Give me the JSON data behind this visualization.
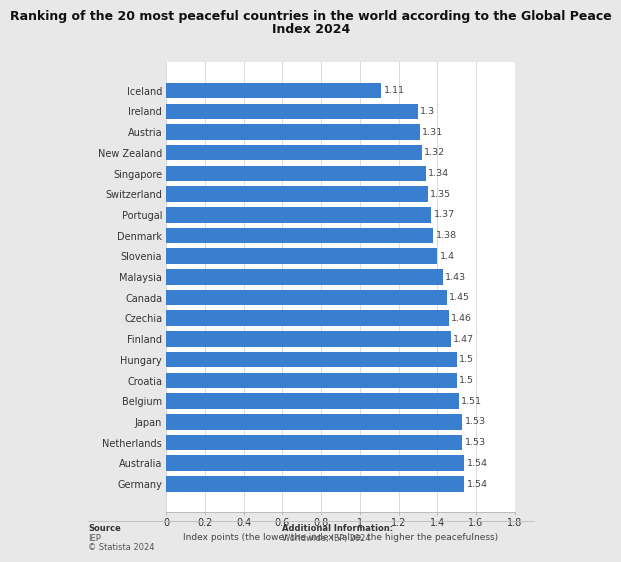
{
  "title_line1": "Ranking of the 20 most peaceful countries in the world according to the Global Peace",
  "title_line2": "Index 2024",
  "countries": [
    "Iceland",
    "Ireland",
    "Austria",
    "New Zealand",
    "Singapore",
    "Switzerland",
    "Portugal",
    "Denmark",
    "Slovenia",
    "Malaysia",
    "Canada",
    "Czechia",
    "Finland",
    "Hungary",
    "Croatia",
    "Belgium",
    "Japan",
    "Netherlands",
    "Australia",
    "Germany"
  ],
  "values": [
    1.11,
    1.3,
    1.31,
    1.32,
    1.34,
    1.35,
    1.37,
    1.38,
    1.4,
    1.43,
    1.45,
    1.46,
    1.47,
    1.5,
    1.5,
    1.51,
    1.53,
    1.53,
    1.54,
    1.54
  ],
  "bar_color": "#3a7fcf",
  "background_color": "#e8e8e8",
  "plot_background": "#ffffff",
  "xlabel": "Index points (the lower the index value, the higher the peacefulness)",
  "xlim": [
    0,
    1.8
  ],
  "xticks": [
    0,
    0.2,
    0.4,
    0.6,
    0.8,
    1.0,
    1.2,
    1.4,
    1.6,
    1.8
  ],
  "xtick_labels": [
    "0",
    "0.2",
    "0.4",
    "0.6",
    "0.8",
    "1",
    "1.2",
    "1.4",
    "1.6",
    "1.8"
  ],
  "source_line1": "Source",
  "source_line2": "IEP",
  "source_line3": "© Statista 2024",
  "additional_line1": "Additional Information:",
  "additional_line2": "Worldwide; IEP; 2024",
  "title_fontsize": 9.0,
  "label_fontsize": 7.0,
  "tick_fontsize": 7.0,
  "value_fontsize": 6.8,
  "footer_fontsize": 6.0
}
